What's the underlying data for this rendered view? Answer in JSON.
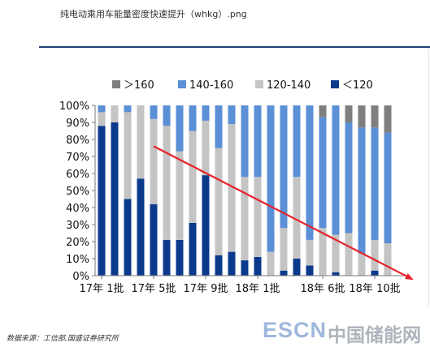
{
  "file_title": "纯电动乘用车能量密度快速提升（whkg）.png",
  "tiny_mark": "·",
  "source_note": "数据来源：工信部,国盛证券研究所",
  "watermark": {
    "latin": "ESCN",
    "cjk": "中国储能网"
  },
  "colors": {
    "gt160": "#7f7f7f",
    "r140_160": "#5b8fd6",
    "r120_140": "#c4c4c4",
    "lt120": "#0b3a8c",
    "trend": "#e8212a"
  },
  "chart_data": {
    "type": "bar",
    "stacked": true,
    "legend_position": "top",
    "ylim": [
      0,
      100
    ],
    "y_ticks": [
      "0%",
      "10%",
      "20%",
      "30%",
      "40%",
      "50%",
      "60%",
      "70%",
      "80%",
      "90%",
      "100%"
    ],
    "x_tick_labels": [
      {
        "label": "17年 1批",
        "index": 0
      },
      {
        "label": "17年 5批",
        "index": 4
      },
      {
        "label": "17年 9批",
        "index": 8
      },
      {
        "label": "18年 1批",
        "index": 12
      },
      {
        "label": "18年 6批",
        "index": 17
      },
      {
        "label": "18年 10批",
        "index": 21
      }
    ],
    "categories": [
      "17-1",
      "17-2",
      "17-3",
      "17-4",
      "17-5",
      "17-6",
      "17-7",
      "17-8",
      "17-9",
      "17-10",
      "17-11",
      "17-12",
      "18-1",
      "18-2",
      "18-3",
      "18-4",
      "18-5",
      "18-6",
      "18-7",
      "18-8",
      "18-9",
      "18-10",
      "18-11",
      "18-12"
    ],
    "series": [
      {
        "name": "＜120",
        "color_key": "lt120",
        "values": [
          88,
          90,
          45,
          57,
          42,
          21,
          21,
          31,
          59,
          12,
          14,
          9,
          11,
          0,
          3,
          10,
          6,
          0,
          2,
          0,
          0,
          3,
          0,
          0
        ]
      },
      {
        "name": "120-140",
        "color_key": "r120_140",
        "values": [
          8,
          10,
          51,
          43,
          50,
          67,
          52,
          54,
          32,
          63,
          75,
          49,
          47,
          14,
          25,
          48,
          15,
          28,
          22,
          25,
          13,
          18,
          19,
          0
        ]
      },
      {
        "name": "140-160",
        "color_key": "r140_160",
        "values": [
          4,
          0,
          4,
          0,
          8,
          12,
          27,
          15,
          9,
          25,
          11,
          42,
          42,
          86,
          72,
          42,
          79,
          65,
          76,
          65,
          74,
          66,
          65,
          0
        ]
      },
      {
        "name": "＞160",
        "color_key": "gt160",
        "values": [
          0,
          0,
          0,
          0,
          0,
          0,
          0,
          0,
          0,
          0,
          0,
          0,
          0,
          0,
          0,
          0,
          0,
          7,
          0,
          10,
          13,
          13,
          16,
          0
        ]
      }
    ],
    "trend_arrow": {
      "from_category_index": 4,
      "from_value": 76,
      "to_category_index": 24,
      "to_value": -2
    }
  }
}
